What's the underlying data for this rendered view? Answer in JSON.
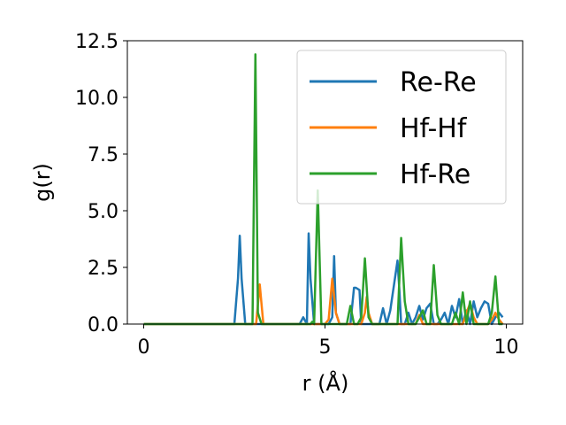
{
  "chart_data": {
    "type": "line",
    "title": "",
    "xlabel": "r (Å)",
    "ylabel": "g(r)",
    "xlim": [
      -0.45,
      10.45
    ],
    "ylim": [
      0,
      12.5
    ],
    "xticks": [
      0,
      5,
      10
    ],
    "xtick_labels": [
      "0",
      "5",
      "10"
    ],
    "yticks": [
      0,
      2.5,
      5,
      7.5,
      10,
      12.5
    ],
    "ytick_labels": [
      "0.0",
      "2.5",
      "5.0",
      "7.5",
      "10.0",
      "12.5"
    ],
    "grid": false,
    "legend_position": "top-right",
    "series": [
      {
        "name": "Re-Re",
        "color": "#1f77b4",
        "x": [
          0,
          2.4,
          2.5,
          2.6,
          2.65,
          2.7,
          2.8,
          2.9,
          3.0,
          4.2,
          4.3,
          4.4,
          4.5,
          4.55,
          4.6,
          4.7,
          4.8,
          5.0,
          5.1,
          5.2,
          5.25,
          5.3,
          5.4,
          5.5,
          5.6,
          5.7,
          5.8,
          5.85,
          5.95,
          6.0,
          6.1,
          6.2,
          6.3,
          6.5,
          6.6,
          6.7,
          6.8,
          7.0,
          7.05,
          7.1,
          7.2,
          7.3,
          7.4,
          7.5,
          7.6,
          7.7,
          7.8,
          7.9,
          8.0,
          8.1,
          8.2,
          8.3,
          8.4,
          8.5,
          8.6,
          8.7,
          8.8,
          8.9,
          9.0,
          9.1,
          9.2,
          9.3,
          9.4,
          9.5,
          9.6,
          9.7,
          9.8,
          9.9
        ],
        "y": [
          0,
          0,
          0,
          2.0,
          3.9,
          2.0,
          0,
          0,
          0,
          0,
          0,
          0.3,
          0,
          4.0,
          2.0,
          0,
          0,
          0,
          0,
          0.3,
          3.0,
          0.5,
          0,
          0,
          0,
          0,
          1.6,
          1.6,
          1.5,
          0,
          0,
          0,
          0,
          0,
          0.7,
          0,
          0.6,
          2.8,
          1.5,
          0,
          0,
          0.5,
          0,
          0.3,
          0.8,
          0.2,
          0.7,
          0.9,
          0,
          0,
          0.2,
          0.5,
          0,
          0.8,
          0.3,
          1.1,
          0,
          0.6,
          0,
          1.0,
          0.3,
          0.7,
          1.0,
          0.9,
          0,
          0.3,
          0.5,
          0.3
        ]
      },
      {
        "name": "Hf-Hf",
        "color": "#ff7f0e",
        "x": [
          0,
          3.1,
          3.2,
          3.3,
          3.4,
          4.9,
          5.0,
          5.1,
          5.2,
          5.3,
          5.4,
          6.0,
          6.1,
          6.15,
          6.2,
          6.3,
          7.5,
          7.6,
          7.7,
          8.8,
          8.9,
          9.0,
          9.1,
          9.2,
          9.3,
          9.5,
          9.6,
          9.7,
          9.8,
          9.9
        ],
        "y": [
          0,
          0,
          1.75,
          0,
          0,
          0,
          0,
          0.2,
          2.0,
          0.5,
          0,
          0,
          0.5,
          1.2,
          0.5,
          0,
          0,
          0.4,
          0,
          0,
          0.5,
          0.9,
          0.3,
          0,
          0,
          0,
          0.2,
          0.5,
          0.2,
          0
        ],
        "note": ""
      },
      {
        "name": "Hf-Re",
        "color": "#2ca02c",
        "x": [
          0,
          2.9,
          3.0,
          3.08,
          3.15,
          3.25,
          4.5,
          4.6,
          4.65,
          4.7,
          4.8,
          4.9,
          5.0,
          5.5,
          5.6,
          5.7,
          5.8,
          5.9,
          6.0,
          6.1,
          6.2,
          6.3,
          6.9,
          7.0,
          7.05,
          7.1,
          7.2,
          7.3,
          7.5,
          7.6,
          7.7,
          7.8,
          7.9,
          8.0,
          8.1,
          8.2,
          8.5,
          8.6,
          8.7,
          8.8,
          8.9,
          9.0,
          9.1,
          9.2,
          9.3,
          9.4,
          9.5,
          9.6,
          9.7,
          9.8,
          9.9
        ],
        "y": [
          0,
          0,
          0,
          11.9,
          0.5,
          0,
          0,
          0,
          0.1,
          0,
          5.9,
          0,
          0,
          0,
          0,
          0.8,
          0,
          0,
          0.3,
          2.9,
          0.3,
          0,
          0,
          0,
          2.0,
          3.8,
          1.0,
          0,
          0,
          0.3,
          0.6,
          0,
          0,
          2.6,
          0.4,
          0,
          0,
          0.5,
          0,
          1.4,
          0,
          1.0,
          0,
          0,
          0,
          0,
          0,
          0.5,
          2.1,
          0,
          0
        ]
      }
    ]
  }
}
